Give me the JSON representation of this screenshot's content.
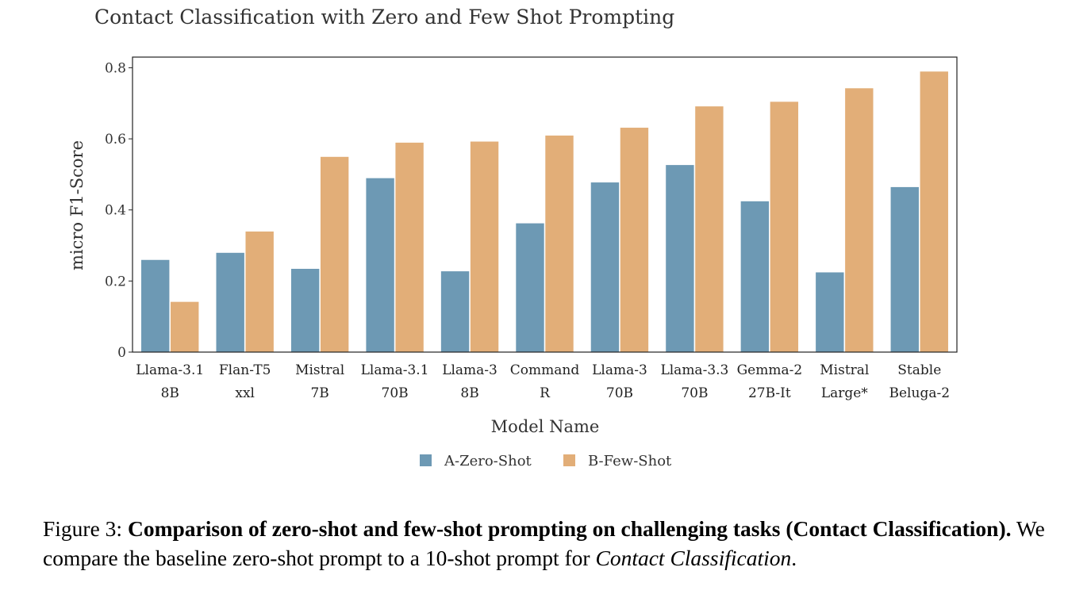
{
  "chart_data": {
    "type": "bar",
    "title": "Contact Classification with Zero and Few Shot Prompting",
    "xlabel": "Model Name",
    "ylabel": "micro F1-Score",
    "ylim": [
      0,
      0.83
    ],
    "yticks": [
      {
        "value": 0,
        "label": "0"
      },
      {
        "value": 0.2,
        "label": "0.2"
      },
      {
        "value": 0.4,
        "label": "0.4"
      },
      {
        "value": 0.6,
        "label": "0.6"
      },
      {
        "value": 0.8,
        "label": "0.8"
      }
    ],
    "grid": false,
    "legend_position": "bottom-center",
    "categories": [
      [
        "Llama-3.1",
        "8B"
      ],
      [
        "Flan-T5",
        "xxl"
      ],
      [
        "Mistral",
        "7B"
      ],
      [
        "Llama-3.1",
        "70B"
      ],
      [
        "Llama-3",
        "8B"
      ],
      [
        "Command",
        "R"
      ],
      [
        "Llama-3",
        "70B"
      ],
      [
        "Llama-3.3",
        "70B"
      ],
      [
        "Gemma-2",
        "27B-It"
      ],
      [
        "Mistral",
        "Large*"
      ],
      [
        "Stable",
        "Beluga-2"
      ]
    ],
    "series": [
      {
        "name": "A-Zero-Shot",
        "color": "#6d99b4",
        "values": [
          0.26,
          0.28,
          0.235,
          0.49,
          0.228,
          0.363,
          0.478,
          0.527,
          0.425,
          0.225,
          0.465
        ]
      },
      {
        "name": "B-Few-Shot",
        "color": "#e2ae78",
        "values": [
          0.142,
          0.34,
          0.55,
          0.59,
          0.593,
          0.61,
          0.632,
          0.692,
          0.705,
          0.743,
          0.79
        ]
      }
    ]
  },
  "caption": {
    "label": "Figure 3: ",
    "bold": "Comparison of zero-shot and few-shot prompting on challenging tasks (Contact Classification).",
    "text": " We compare the baseline zero-shot prompt to a 10-shot prompt for ",
    "italic": "Contact Classification",
    "end": "."
  }
}
